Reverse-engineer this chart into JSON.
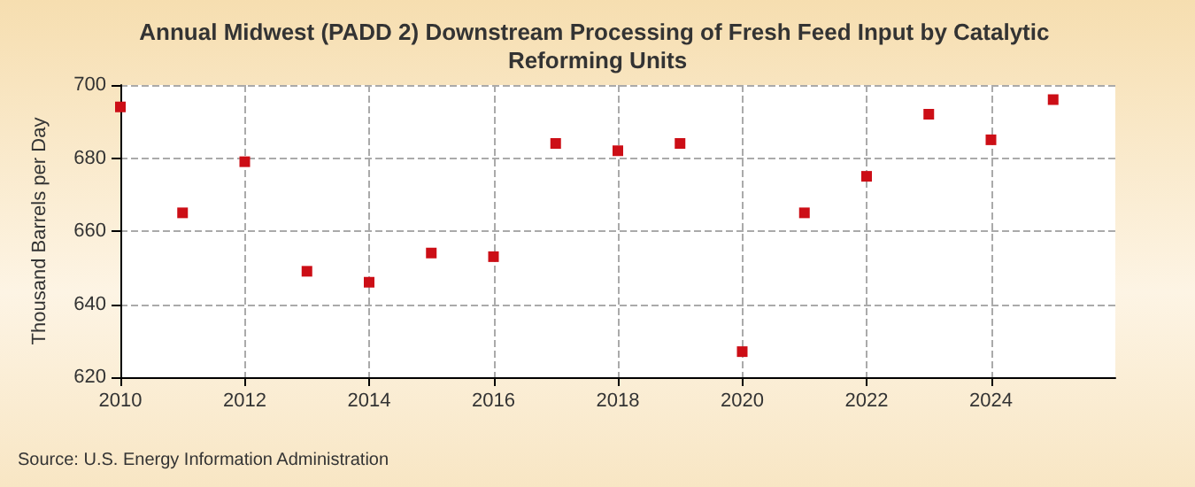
{
  "chart_data": {
    "type": "scatter",
    "title": "Annual Midwest (PADD 2) Downstream Processing of Fresh Feed Input by Catalytic Reforming Units",
    "ylabel": "Thousand Barrels per Day",
    "annotations": [
      "Source: U.S. Energy Information Administration"
    ],
    "x": [
      2010,
      2011,
      2012,
      2013,
      2014,
      2015,
      2016,
      2017,
      2018,
      2019,
      2020,
      2021,
      2022,
      2023,
      2024,
      2025
    ],
    "series": [
      {
        "color": "#cc0e16",
        "values": [
          694,
          665,
          679,
          649,
          646,
          654,
          653,
          684,
          682,
          684,
          627,
          665,
          675,
          692,
          685,
          696
        ]
      }
    ],
    "xlim": [
      2010,
      2026
    ],
    "xticks": [
      2010,
      2012,
      2014,
      2016,
      2018,
      2020,
      2022,
      2024
    ],
    "ylim": [
      620,
      700
    ],
    "yticks": [
      620,
      640,
      660,
      680,
      700
    ],
    "grid": true,
    "marker": "square"
  }
}
